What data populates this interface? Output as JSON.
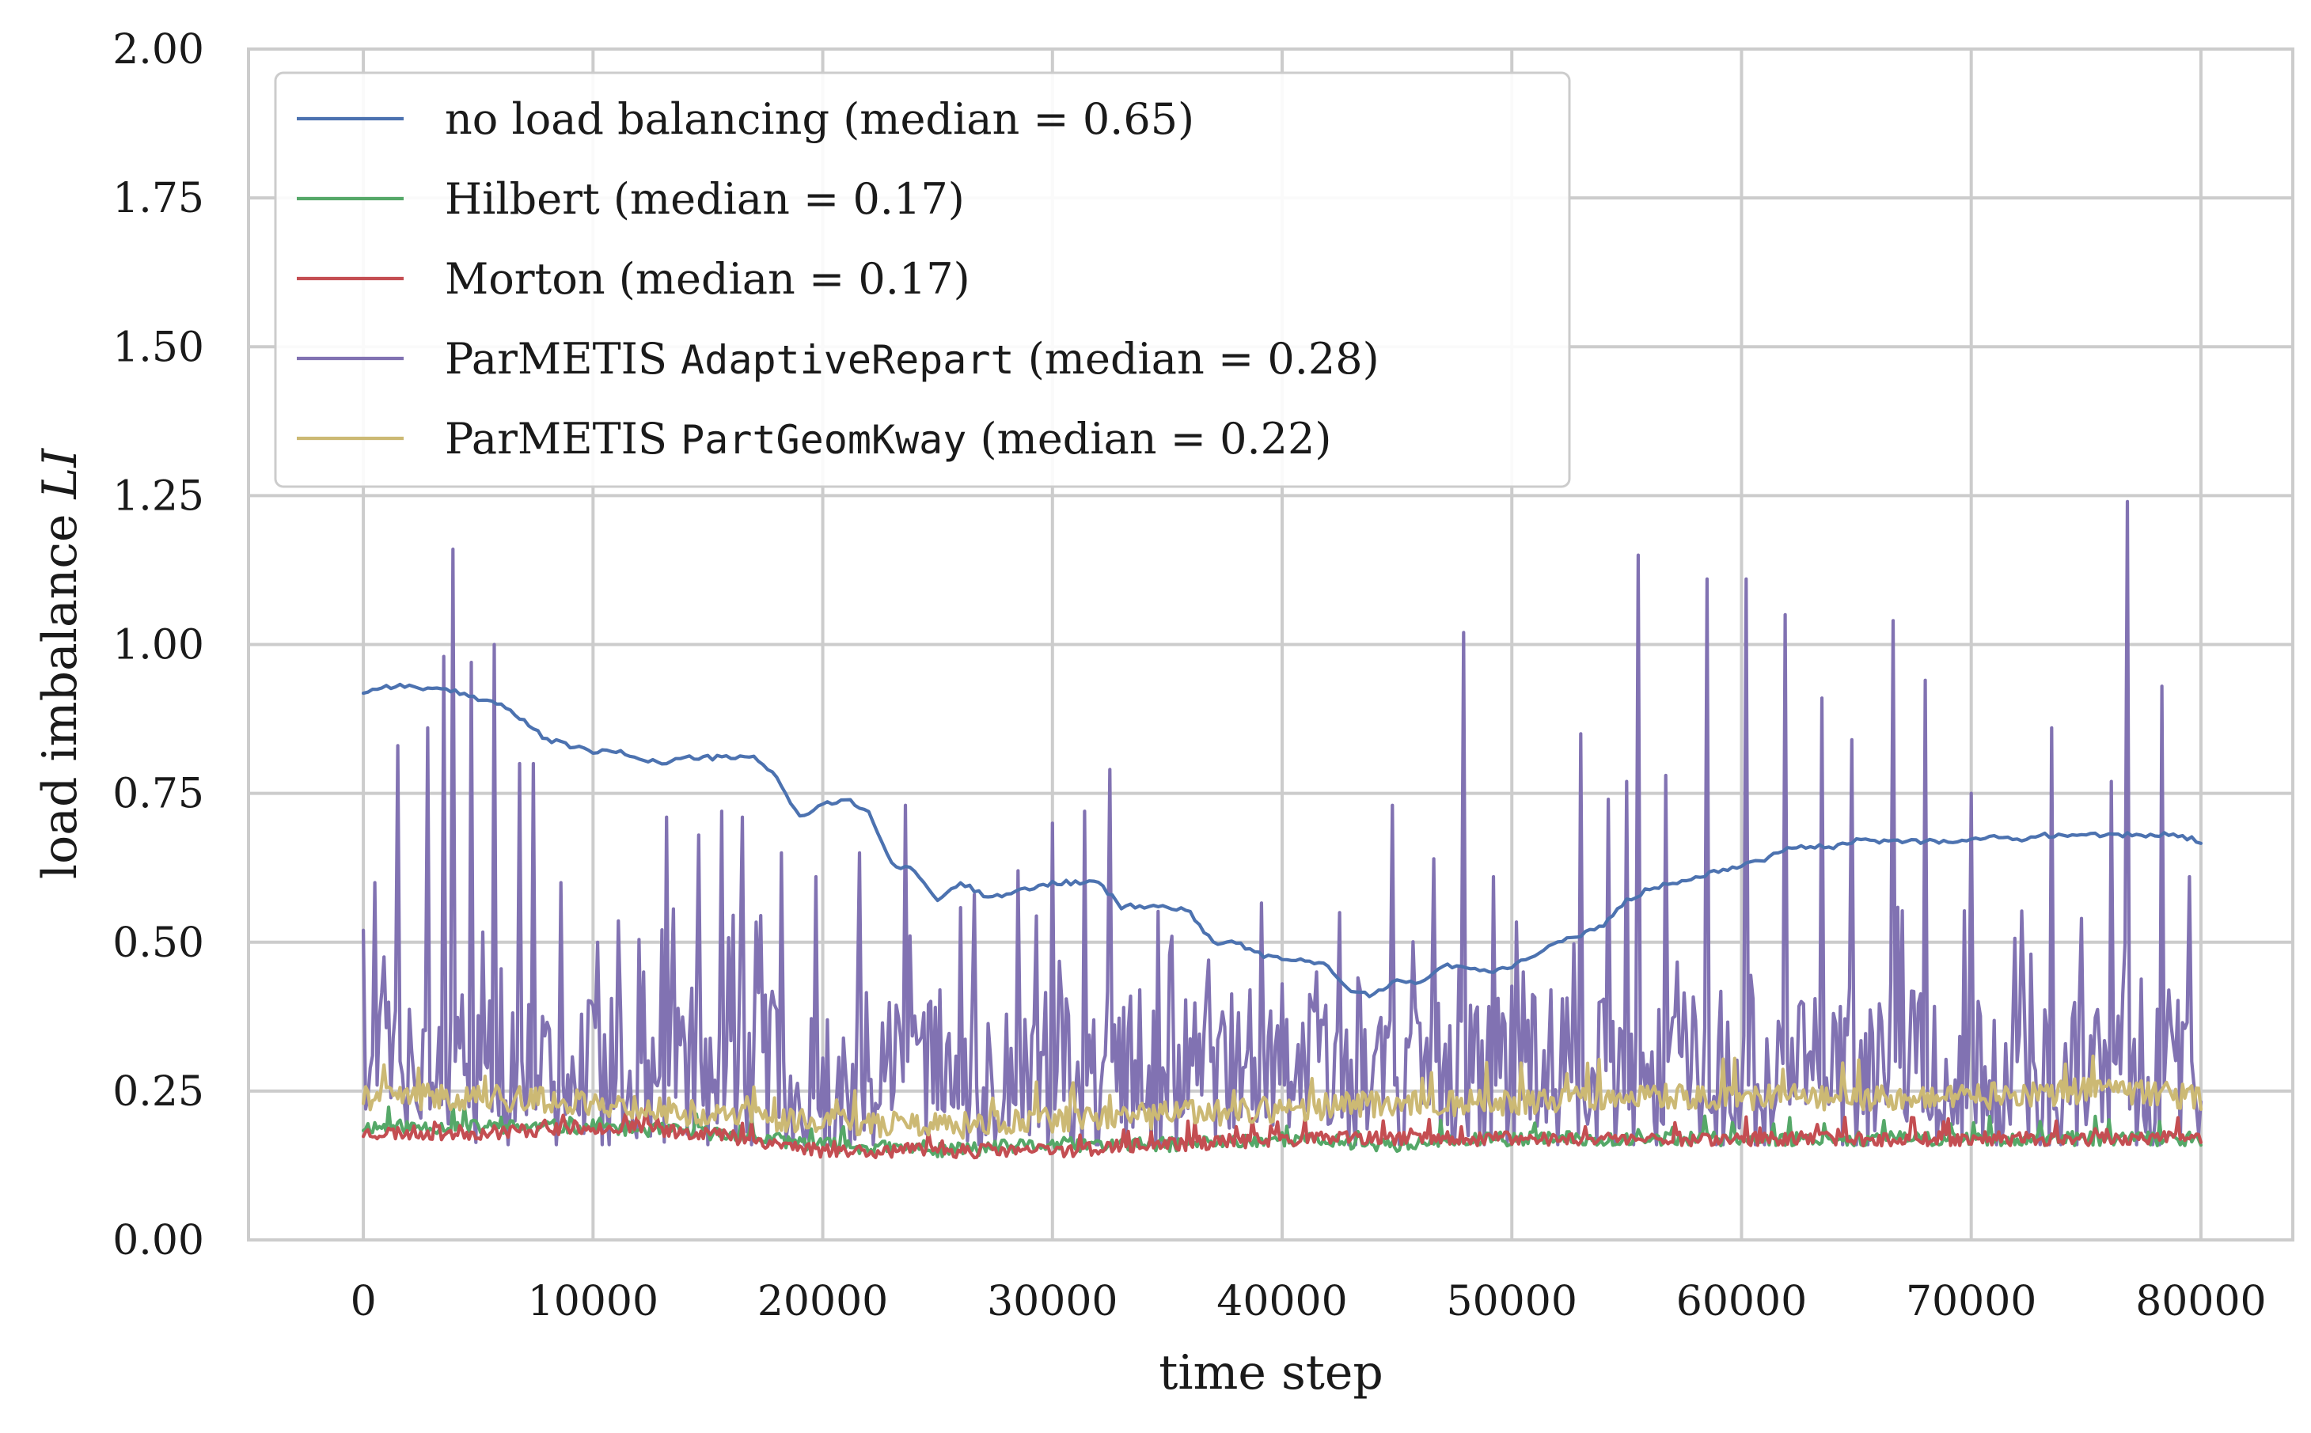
{
  "chart_data": {
    "type": "line",
    "title": "",
    "xlabel": "time step",
    "ylabel_main": "load imbalance ",
    "ylabel_symbol": "LI",
    "xlim": [
      -5000,
      84000
    ],
    "ylim": [
      0,
      2
    ],
    "x_ticks": [
      0,
      10000,
      20000,
      30000,
      40000,
      50000,
      60000,
      70000,
      80000
    ],
    "x_tick_labels": [
      "0",
      "10000",
      "20000",
      "30000",
      "40000",
      "50000",
      "60000",
      "70000",
      "80000"
    ],
    "y_ticks": [
      0,
      0.25,
      0.5,
      0.75,
      1.0,
      1.25,
      1.5,
      1.75,
      2.0
    ],
    "y_tick_labels": [
      "0.00",
      "0.25",
      "0.50",
      "0.75",
      "1.00",
      "1.25",
      "1.50",
      "1.75",
      "2.00"
    ],
    "grid": true,
    "legend_position": "top-left",
    "series": [
      {
        "name": "no load balancing (median = 0.65)",
        "legend_pre": "no load balancing",
        "legend_code": "",
        "legend_post": " (median = 0.65)",
        "color": "#4c72b0",
        "style": "smooth",
        "x": [
          0,
          1000,
          2000,
          4000,
          5000,
          6000,
          7000,
          8000,
          9000,
          10000,
          11000,
          12000,
          13000,
          14000,
          15000,
          16000,
          17000,
          18000,
          18500,
          19000,
          20000,
          21000,
          22000,
          23000,
          24000,
          25000,
          26000,
          27000,
          28000,
          29000,
          30000,
          31000,
          32000,
          33000,
          34000,
          35000,
          36000,
          37000,
          38000,
          39000,
          40000,
          41000,
          42000,
          43000,
          44000,
          45000,
          46000,
          47000,
          48000,
          49000,
          50000,
          51000,
          52000,
          53000,
          54000,
          55000,
          56000,
          57000,
          58000,
          59000,
          60000,
          61000,
          62000,
          63000,
          64000,
          65000,
          66000,
          67000,
          68000,
          69000,
          70000,
          71000,
          72000,
          73000,
          74000,
          75000,
          76000,
          77000,
          78000,
          79000,
          80000
        ],
        "y": [
          0.92,
          0.93,
          0.93,
          0.92,
          0.91,
          0.9,
          0.87,
          0.84,
          0.83,
          0.82,
          0.82,
          0.81,
          0.8,
          0.81,
          0.81,
          0.81,
          0.81,
          0.78,
          0.74,
          0.71,
          0.73,
          0.74,
          0.72,
          0.63,
          0.62,
          0.57,
          0.6,
          0.58,
          0.58,
          0.59,
          0.6,
          0.6,
          0.6,
          0.56,
          0.56,
          0.56,
          0.55,
          0.5,
          0.5,
          0.48,
          0.47,
          0.47,
          0.46,
          0.42,
          0.41,
          0.44,
          0.43,
          0.46,
          0.46,
          0.45,
          0.46,
          0.48,
          0.5,
          0.51,
          0.53,
          0.57,
          0.59,
          0.6,
          0.61,
          0.62,
          0.63,
          0.64,
          0.66,
          0.66,
          0.66,
          0.67,
          0.67,
          0.67,
          0.67,
          0.67,
          0.67,
          0.68,
          0.67,
          0.68,
          0.68,
          0.68,
          0.68,
          0.68,
          0.68,
          0.68,
          0.67
        ]
      },
      {
        "name": "Hilbert (median = 0.17)",
        "legend_pre": "Hilbert",
        "legend_code": "",
        "legend_post": " (median = 0.17)",
        "color": "#55a868",
        "style": "noisy",
        "noise": 0.012,
        "seed": 11,
        "x": [
          0,
          5000,
          10000,
          15000,
          20000,
          25000,
          30000,
          35000,
          40000,
          45000,
          50000,
          55000,
          60000,
          65000,
          70000,
          75000,
          80000
        ],
        "y": [
          0.19,
          0.19,
          0.19,
          0.18,
          0.16,
          0.15,
          0.16,
          0.16,
          0.17,
          0.16,
          0.17,
          0.17,
          0.17,
          0.17,
          0.17,
          0.17,
          0.17
        ]
      },
      {
        "name": "Morton (median = 0.17)",
        "legend_pre": "Morton",
        "legend_code": "",
        "legend_post": " (median = 0.17)",
        "color": "#c44e52",
        "style": "noisy",
        "noise": 0.012,
        "seed": 23,
        "x": [
          0,
          5000,
          10000,
          15000,
          20000,
          25000,
          30000,
          35000,
          40000,
          45000,
          50000,
          55000,
          60000,
          65000,
          70000,
          75000,
          80000
        ],
        "y": [
          0.18,
          0.18,
          0.19,
          0.18,
          0.15,
          0.15,
          0.15,
          0.16,
          0.17,
          0.17,
          0.17,
          0.17,
          0.17,
          0.17,
          0.17,
          0.17,
          0.17
        ]
      },
      {
        "name": "ParMETIS AdaptiveRepart (median = 0.28)",
        "legend_pre": "ParMETIS ",
        "legend_code": "AdaptiveRepart",
        "legend_post": " (median = 0.28)",
        "color": "#8172b2",
        "style": "spiky",
        "seed": 7,
        "base": 0.28,
        "peaks_x": [
          0,
          500,
          1500,
          2800,
          3500,
          3900,
          4700,
          5700,
          6800,
          7400,
          8600,
          10200,
          12200,
          13200,
          14600,
          15600,
          16500,
          18200,
          19700,
          21600,
          23600,
          25100,
          26600,
          28500,
          30000,
          31400,
          32500,
          33800,
          35200,
          36800,
          38600,
          40000,
          41500,
          43400,
          44800,
          46600,
          47900,
          49200,
          50500,
          51700,
          53000,
          54200,
          55000,
          55500,
          56700,
          58500,
          60200,
          61900,
          63500,
          64800,
          66600,
          68000,
          70000,
          72600,
          73500,
          74800,
          76100,
          76800,
          78300,
          79500
        ],
        "peaks_y": [
          0.52,
          0.6,
          0.83,
          0.86,
          0.98,
          1.16,
          0.97,
          1.0,
          0.8,
          0.8,
          0.6,
          0.5,
          0.45,
          0.71,
          0.68,
          0.72,
          0.71,
          0.65,
          0.61,
          0.65,
          0.73,
          0.42,
          0.58,
          0.62,
          0.7,
          0.72,
          0.79,
          0.42,
          0.51,
          0.47,
          0.42,
          0.43,
          0.45,
          0.42,
          0.73,
          0.64,
          1.02,
          0.61,
          0.45,
          0.42,
          0.85,
          0.74,
          0.77,
          1.15,
          0.78,
          1.11,
          1.11,
          1.05,
          0.91,
          0.84,
          1.04,
          0.94,
          0.75,
          0.48,
          0.86,
          0.54,
          0.77,
          1.24,
          0.93,
          0.61
        ]
      },
      {
        "name": "ParMETIS PartGeomKway (median = 0.22)",
        "legend_pre": "ParMETIS ",
        "legend_code": "PartGeomKway",
        "legend_post": " (median = 0.22)",
        "color": "#ccb974",
        "style": "noisy",
        "noise": 0.022,
        "seed": 41,
        "x": [
          0,
          5000,
          10000,
          15000,
          20000,
          25000,
          30000,
          35000,
          40000,
          45000,
          50000,
          55000,
          60000,
          65000,
          70000,
          75000,
          80000
        ],
        "y": [
          0.24,
          0.24,
          0.23,
          0.21,
          0.2,
          0.19,
          0.2,
          0.21,
          0.22,
          0.23,
          0.23,
          0.24,
          0.24,
          0.24,
          0.24,
          0.25,
          0.24
        ]
      }
    ]
  }
}
